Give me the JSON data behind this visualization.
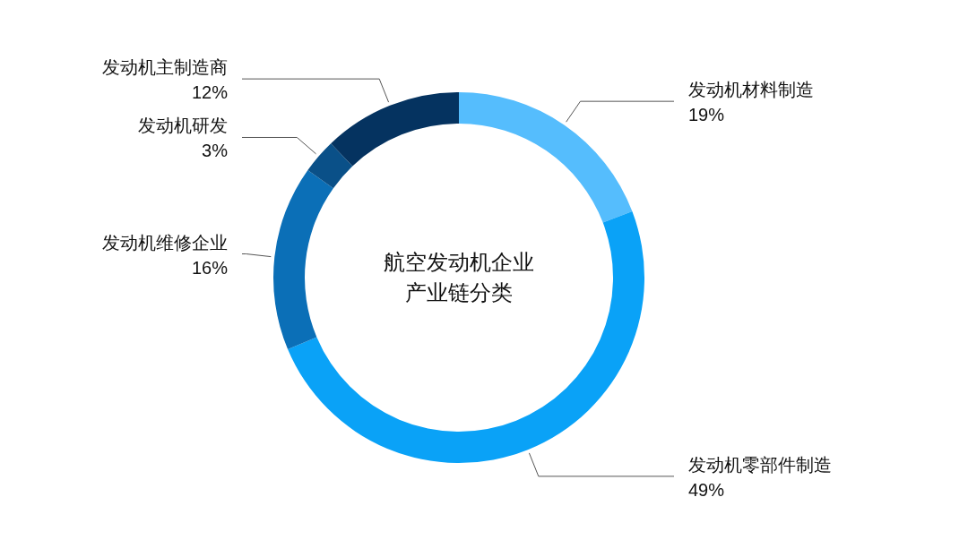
{
  "chart_data": {
    "type": "donut",
    "title": "航空发动机企业产业链分类",
    "categories": [
      "发动机材料制造",
      "发动机零部件制造",
      "发动机维修企业",
      "发动机研发",
      "发动机主制造商"
    ],
    "values": [
      19,
      49,
      16,
      3,
      12
    ],
    "colors": [
      "#55bdfd",
      "#0aa2f7",
      "#0b6fb7",
      "#0a5088",
      "#053360"
    ],
    "value_labels": [
      "19%",
      "49%",
      "16%",
      "3%",
      "12%"
    ]
  }
}
